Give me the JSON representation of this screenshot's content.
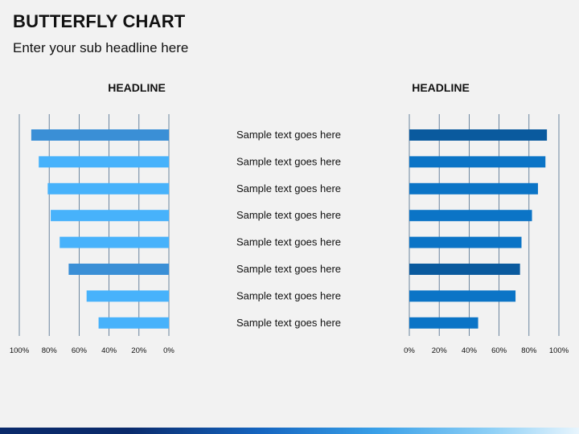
{
  "title": "BUTTERFLY CHART",
  "subtitle": "Enter your sub headline here",
  "chart_data": {
    "type": "bar",
    "categories": [
      "Sample text goes here",
      "Sample text goes here",
      "Sample text goes here",
      "Sample text goes here",
      "Sample text goes here",
      "Sample text goes here",
      "Sample text goes here",
      "Sample text goes here"
    ],
    "series": [
      {
        "title": "HEADLINE",
        "values": [
          92,
          87,
          81,
          79,
          73,
          67,
          55,
          47
        ],
        "colors": [
          "#3a8fd6",
          "#47b2fb",
          "#47b2fb",
          "#47b2fb",
          "#47b2fb",
          "#3a8fd6",
          "#47b2fb",
          "#47b2fb"
        ]
      },
      {
        "title": "HEADLINE",
        "values": [
          92,
          91,
          86,
          82,
          75,
          74,
          71,
          46
        ],
        "colors": [
          "#0a5a9e",
          "#0b74c6",
          "#0b74c6",
          "#0b74c6",
          "#0b74c6",
          "#0a5a9e",
          "#0b74c6",
          "#0b74c6"
        ]
      }
    ],
    "left_ticks": [
      "100%",
      "80%",
      "60%",
      "40%",
      "20%",
      "0%"
    ],
    "right_ticks": [
      "0%",
      "20%",
      "40%",
      "60%",
      "80%",
      "100%"
    ],
    "xlim": [
      0,
      100
    ],
    "grid": true
  }
}
